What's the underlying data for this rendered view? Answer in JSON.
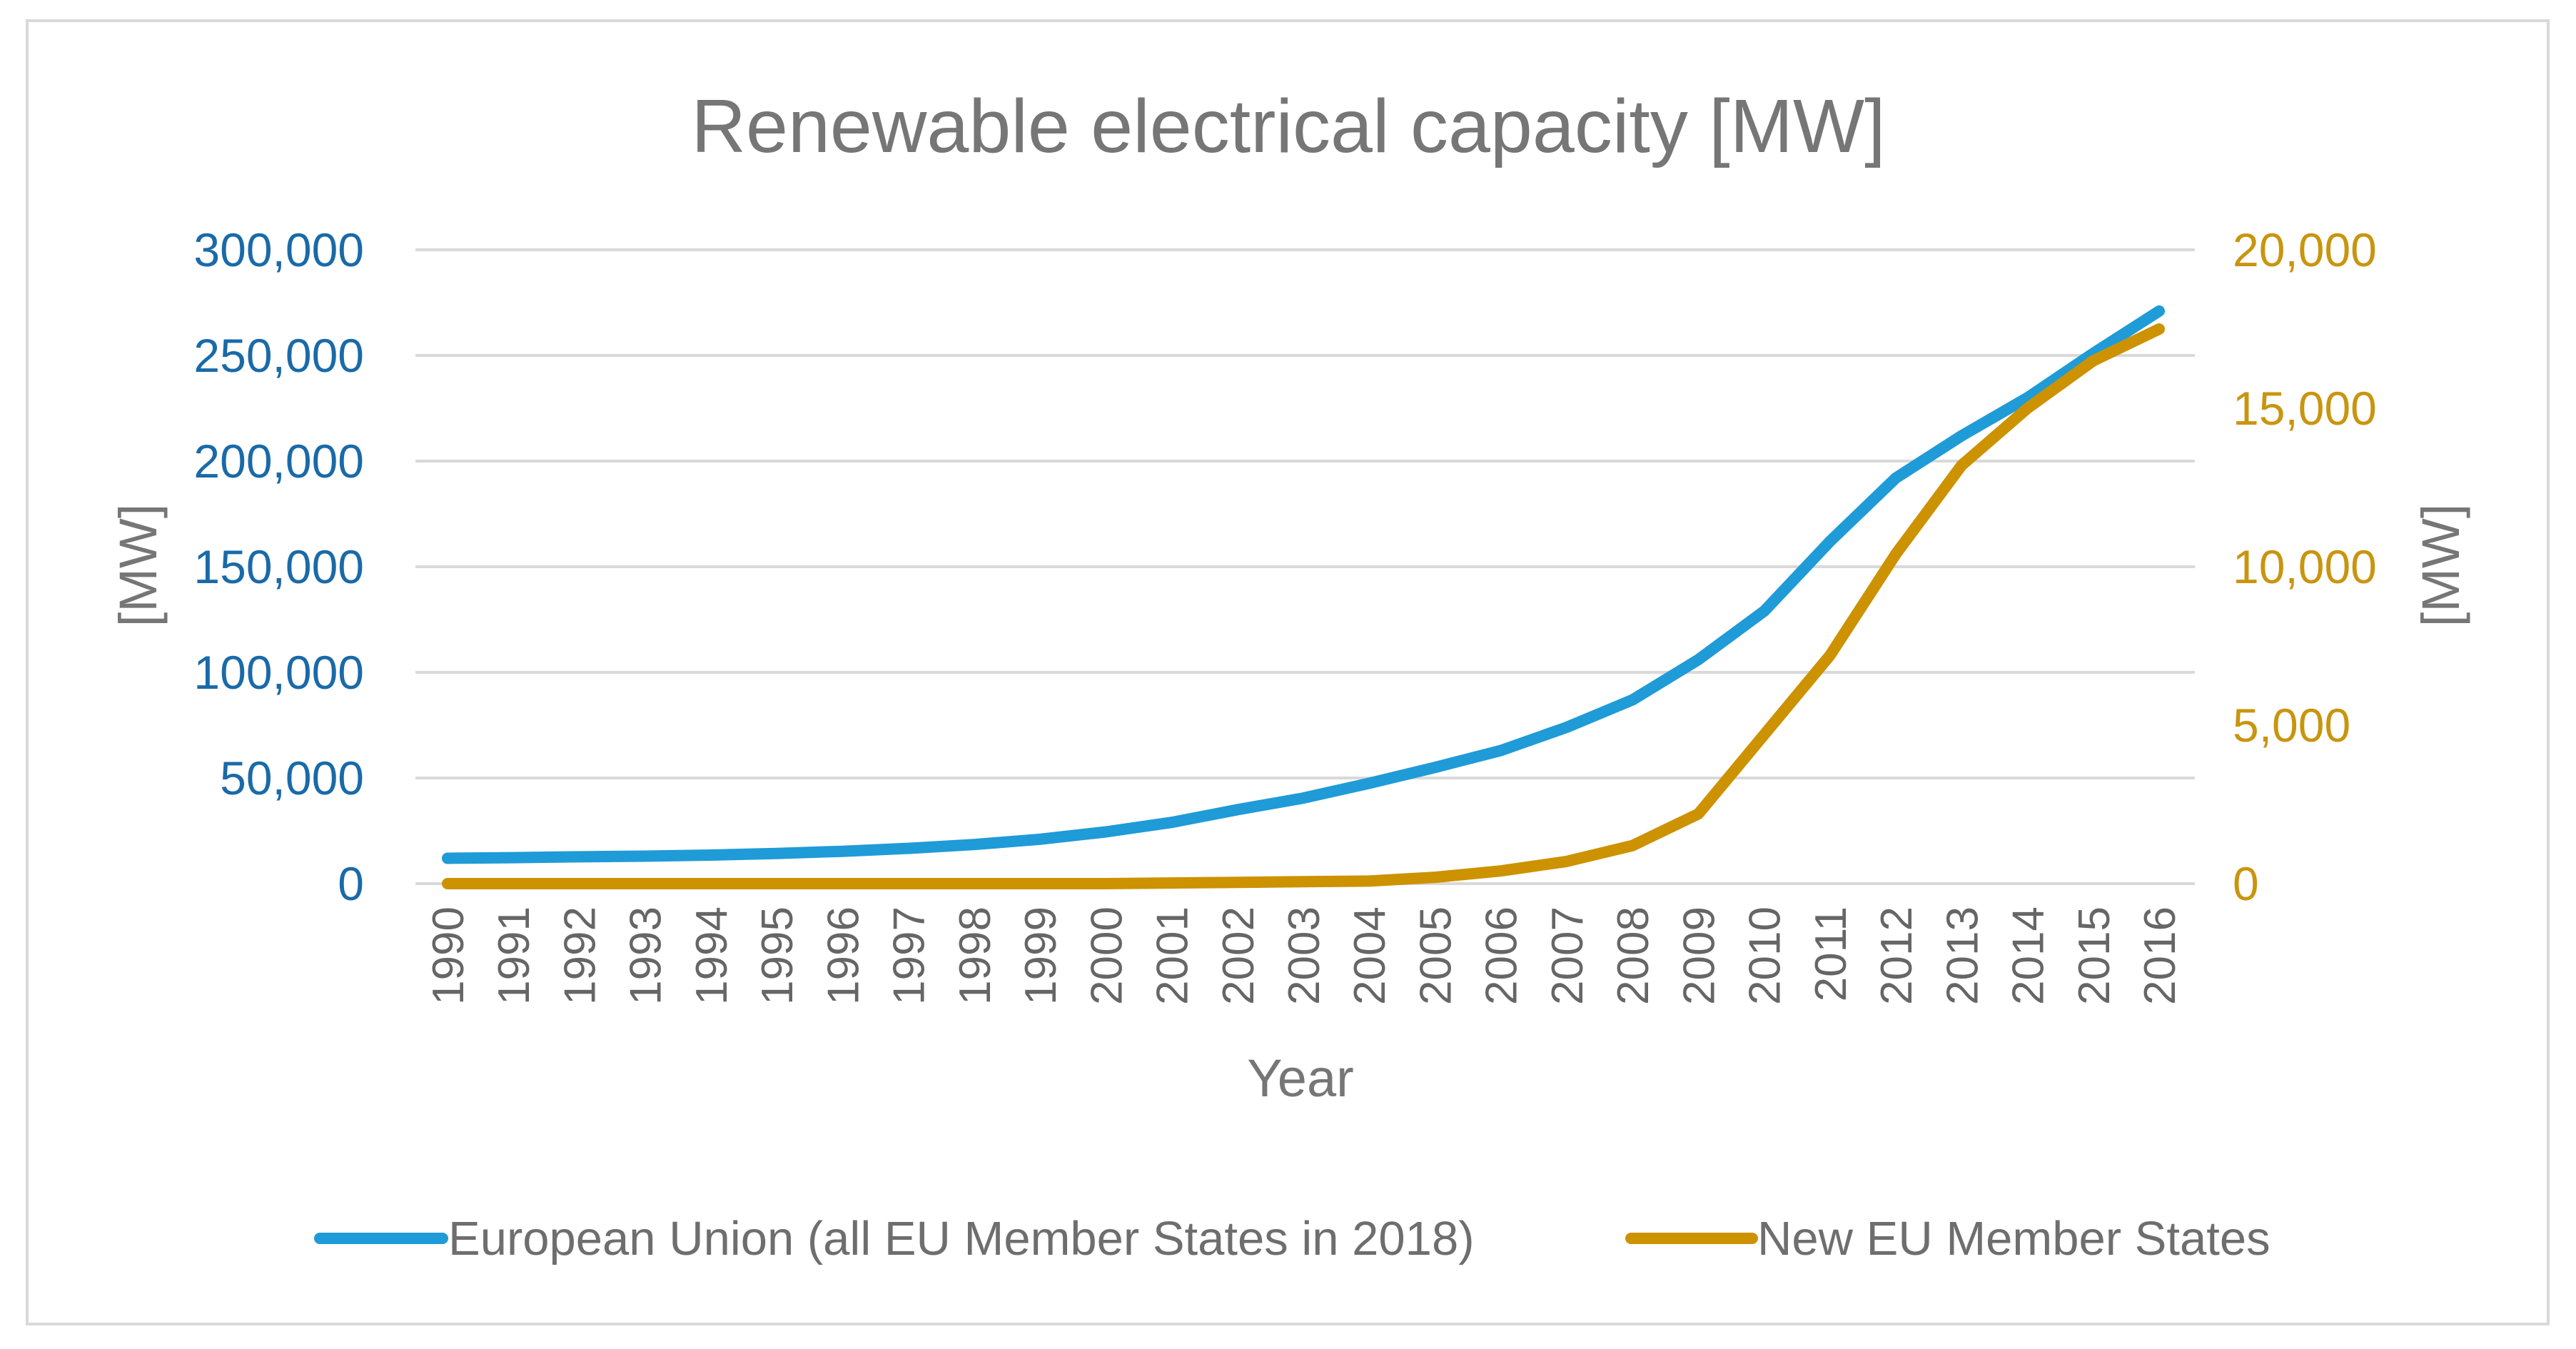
{
  "chart_data": {
    "type": "line",
    "title": "Renewable electrical capacity [MW]",
    "xlabel": "Year",
    "ylabel_left": "[MW]",
    "ylabel_right": "[MW]",
    "x": [
      1990,
      1991,
      1992,
      1993,
      1994,
      1995,
      1996,
      1997,
      1998,
      1999,
      2000,
      2001,
      2002,
      2003,
      2004,
      2005,
      2006,
      2007,
      2008,
      2009,
      2010,
      2011,
      2012,
      2013,
      2014,
      2015,
      2016
    ],
    "y_left": {
      "min": 0,
      "max": 300000,
      "ticks": [
        0,
        50000,
        100000,
        150000,
        200000,
        250000,
        300000
      ],
      "tick_labels": [
        "0",
        "50,000",
        "100,000",
        "150,000",
        "200,000",
        "250,000",
        "300,000"
      ]
    },
    "y_right": {
      "min": 0,
      "max": 20000,
      "ticks": [
        0,
        5000,
        10000,
        15000,
        20000
      ],
      "tick_labels": [
        "0",
        "5,000",
        "10,000",
        "15,000",
        "20,000"
      ]
    },
    "grid": true,
    "legend_position": "bottom",
    "series": [
      {
        "name": "European Union (all EU Member States in 2018)",
        "axis": "left",
        "color": "#1f9bd7",
        "values": [
          12000,
          12300,
          12700,
          13000,
          13500,
          14300,
          15300,
          16700,
          18500,
          21000,
          24500,
          29000,
          35000,
          40500,
          47500,
          55000,
          63000,
          74000,
          87000,
          106000,
          129000,
          162000,
          192000,
          212000,
          230000,
          251000,
          271000
        ]
      },
      {
        "name": "New EU Member States",
        "axis": "right",
        "color": "#cc9200",
        "values": [
          0,
          0,
          0,
          0,
          0,
          0,
          0,
          0,
          0,
          0,
          0,
          20,
          40,
          60,
          80,
          200,
          400,
          700,
          1200,
          2200,
          4700,
          7200,
          10400,
          13200,
          15000,
          16500,
          17500
        ]
      }
    ]
  }
}
